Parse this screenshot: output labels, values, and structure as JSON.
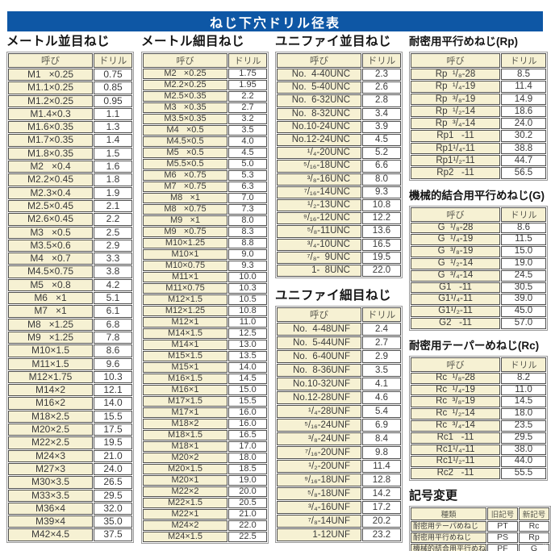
{
  "page_title": "ねじ下穴ドリル径表",
  "col_headers": {
    "name": "呼び",
    "drill": "ドリル"
  },
  "colors": {
    "banner_bg": "#0e57a5",
    "banner_text": "#ffffff",
    "cell_cream": "#f6f1d3",
    "cell_white": "#ffffff",
    "border_dark": "#4f4f4f",
    "border_outer": "#9a9a9a"
  },
  "sections": {
    "metric_coarse": {
      "title": "メートル並目ねじ",
      "rows": [
        [
          "M1   ×0.25",
          "0.75"
        ],
        [
          "M1.1×0.25",
          "0.85"
        ],
        [
          "M1.2×0.25",
          "0.95"
        ],
        [
          "M1.4×0.3",
          "1.1"
        ],
        [
          "M1.6×0.35",
          "1.3"
        ],
        [
          "M1.7×0.35",
          "1.4"
        ],
        [
          "M1.8×0.35",
          "1.5"
        ],
        [
          "M2   ×0.4",
          "1.6"
        ],
        [
          "M2.2×0.45",
          "1.8"
        ],
        [
          "M2.3×0.4",
          "1.9"
        ],
        [
          "M2.5×0.45",
          "2.1"
        ],
        [
          "M2.6×0.45",
          "2.2"
        ],
        [
          "M3   ×0.5",
          "2.5"
        ],
        [
          "M3.5×0.6",
          "2.9"
        ],
        [
          "M4   ×0.7",
          "3.3"
        ],
        [
          "M4.5×0.75",
          "3.8"
        ],
        [
          "M5   ×0.8",
          "4.2"
        ],
        [
          "M6   ×1",
          "5.1"
        ],
        [
          "M7   ×1",
          "6.1"
        ],
        [
          "M8   ×1.25",
          "6.8"
        ],
        [
          "M9   ×1.25",
          "7.8"
        ],
        [
          "M10×1.5",
          "8.6"
        ],
        [
          "M11×1.5",
          "9.6"
        ],
        [
          "M12×1.75",
          "10.3"
        ],
        [
          "M14×2",
          "12.1"
        ],
        [
          "M16×2",
          "14.0"
        ],
        [
          "M18×2.5",
          "15.5"
        ],
        [
          "M20×2.5",
          "17.5"
        ],
        [
          "M22×2.5",
          "19.5"
        ],
        [
          "M24×3",
          "21.0"
        ],
        [
          "M27×3",
          "24.0"
        ],
        [
          "M30×3.5",
          "26.5"
        ],
        [
          "M33×3.5",
          "29.5"
        ],
        [
          "M36×4",
          "32.0"
        ],
        [
          "M39×4",
          "35.0"
        ],
        [
          "M42×4.5",
          "37.5"
        ]
      ]
    },
    "metric_fine": {
      "title": "メートル細目ねじ",
      "rows": [
        [
          "M2   ×0.25",
          "1.75"
        ],
        [
          "M2.2×0.25",
          "1.95"
        ],
        [
          "M2.5×0.35",
          "2.2"
        ],
        [
          "M3   ×0.35",
          "2.7"
        ],
        [
          "M3.5×0.35",
          "3.2"
        ],
        [
          "M4   ×0.5",
          "3.5"
        ],
        [
          "M4.5×0.5",
          "4.0"
        ],
        [
          "M5   ×0.5",
          "4.5"
        ],
        [
          "M5.5×0.5",
          "5.0"
        ],
        [
          "M6   ×0.75",
          "5.3"
        ],
        [
          "M7   ×0.75",
          "6.3"
        ],
        [
          "M8   ×1",
          "7.0"
        ],
        [
          "M8   ×0.75",
          "7.3"
        ],
        [
          "M9   ×1",
          "8.0"
        ],
        [
          "M9   ×0.75",
          "8.3"
        ],
        [
          "M10×1.25",
          "8.8"
        ],
        [
          "M10×1",
          "9.0"
        ],
        [
          "M10×0.75",
          "9.3"
        ],
        [
          "M11×1",
          "10.0"
        ],
        [
          "M11×0.75",
          "10.3"
        ],
        [
          "M12×1.5",
          "10.5"
        ],
        [
          "M12×1.25",
          "10.8"
        ],
        [
          "M12×1",
          "11.0"
        ],
        [
          "M14×1.5",
          "12.5"
        ],
        [
          "M14×1",
          "13.0"
        ],
        [
          "M15×1.5",
          "13.5"
        ],
        [
          "M15×1",
          "14.0"
        ],
        [
          "M16×1.5",
          "14.5"
        ],
        [
          "M16×1",
          "15.0"
        ],
        [
          "M17×1.5",
          "15.5"
        ],
        [
          "M17×1",
          "16.0"
        ],
        [
          "M18×2",
          "16.0"
        ],
        [
          "M18×1.5",
          "16.5"
        ],
        [
          "M18×1",
          "17.0"
        ],
        [
          "M20×2",
          "18.0"
        ],
        [
          "M20×1.5",
          "18.5"
        ],
        [
          "M20×1",
          "19.0"
        ],
        [
          "M22×2",
          "20.0"
        ],
        [
          "M22×1.5",
          "20.5"
        ],
        [
          "M22×1",
          "21.0"
        ],
        [
          "M24×2",
          "22.0"
        ],
        [
          "M24×1.5",
          "22.5"
        ]
      ]
    },
    "unified_coarse": {
      "title": "ユニファイ並目ねじ",
      "rows": [
        [
          "No.  4-40UNC",
          "2.3"
        ],
        [
          "No.  5-40UNC",
          "2.6"
        ],
        [
          "No.  6-32UNC",
          "2.8"
        ],
        [
          "No.  8-32UNC",
          "3.4"
        ],
        [
          "No.10-24UNC",
          "3.9"
        ],
        [
          "No.12-24UNC",
          "4.5"
        ],
        [
          "¹/₄-20UNC",
          "5.2"
        ],
        [
          "⁵/₁₆-18UNC",
          "6.6"
        ],
        [
          "³/₈-16UNC",
          "8.0"
        ],
        [
          "⁷/₁₆-14UNC",
          "9.3"
        ],
        [
          "¹/₂-13UNC",
          "10.8"
        ],
        [
          "⁹/₁₆-12UNC",
          "12.2"
        ],
        [
          "⁵/₈-11UNC",
          "13.6"
        ],
        [
          "³/₄-10UNC",
          "16.5"
        ],
        [
          "⁷/₈-  9UNC",
          "19.5"
        ],
        [
          "1-  8UNC",
          "22.0"
        ]
      ]
    },
    "unified_fine": {
      "title": "ユニファイ細目ねじ",
      "rows": [
        [
          "No.  4-48UNF",
          "2.4"
        ],
        [
          "No.  5-44UNF",
          "2.7"
        ],
        [
          "No.  6-40UNF",
          "2.9"
        ],
        [
          "No.  8-36UNF",
          "3.5"
        ],
        [
          "No.10-32UNF",
          "4.1"
        ],
        [
          "No.12-28UNF",
          "4.6"
        ],
        [
          "¹/₄-28UNF",
          "5.4"
        ],
        [
          "⁵/₁₆-24UNF",
          "6.9"
        ],
        [
          "³/₈-24UNF",
          "8.4"
        ],
        [
          "⁷/₁₆-20UNF",
          "9.8"
        ],
        [
          "¹/₂-20UNF",
          "11.4"
        ],
        [
          "⁹/₁₆-18UNF",
          "12.8"
        ],
        [
          "⁵/₈-18UNF",
          "14.2"
        ],
        [
          "³/₄-16UNF",
          "17.2"
        ],
        [
          "⁷/₈-14UNF",
          "20.2"
        ],
        [
          "1-12UNF",
          "23.2"
        ]
      ]
    },
    "rp": {
      "title": "耐密用平行めねじ(Rp)",
      "rows": [
        [
          "Rp  ¹/₈-28",
          "8.5"
        ],
        [
          "Rp  ¹/₄-19",
          "11.4"
        ],
        [
          "Rp  ³/₈-19",
          "14.9"
        ],
        [
          "Rp  ¹/₂-14",
          "18.6"
        ],
        [
          "Rp  ³/₄-14",
          "24.0"
        ],
        [
          "Rp1   -11",
          "30.2"
        ],
        [
          "Rp1¹/₄-11",
          "38.8"
        ],
        [
          "Rp1¹/₂-11",
          "44.7"
        ],
        [
          "Rp2   -11",
          "56.5"
        ]
      ]
    },
    "g": {
      "title": "機械的結合用平行めねじ(G)",
      "rows": [
        [
          "G  ¹/₈-28",
          "8.6"
        ],
        [
          "G  ¹/₄-19",
          "11.5"
        ],
        [
          "G  ³/₈-19",
          "15.0"
        ],
        [
          "G  ¹/₂-14",
          "19.0"
        ],
        [
          "G  ³/₄-14",
          "24.5"
        ],
        [
          "G1   -11",
          "30.5"
        ],
        [
          "G1¹/₄-11",
          "39.0"
        ],
        [
          "G1¹/₂-11",
          "45.0"
        ],
        [
          "G2   -11",
          "57.0"
        ]
      ]
    },
    "rc": {
      "title": "耐密用テーパーめねじ(Rc)",
      "rows": [
        [
          "Rc  ¹/₈-28",
          "8.2"
        ],
        [
          "Rc  ¹/₄-19",
          "11.0"
        ],
        [
          "Rc  ³/₈-19",
          "14.5"
        ],
        [
          "Rc  ¹/₂-14",
          "18.0"
        ],
        [
          "Rc  ³/₄-14",
          "23.5"
        ],
        [
          "Rc1   -11",
          "29.5"
        ],
        [
          "Rc1¹/₄-11",
          "38.0"
        ],
        [
          "Rc1¹/₂-11",
          "44.0"
        ],
        [
          "Rc2   -11",
          "55.5"
        ]
      ]
    },
    "symbol_change": {
      "title": "記号変更",
      "headers": [
        "種類",
        "旧記号",
        "新記号"
      ],
      "rows": [
        [
          "耐密用テーパめねじ",
          "PT",
          "Rc"
        ],
        [
          "耐密用平行めねじ",
          "PS",
          "Rp"
        ],
        [
          "機械的結合用平行めねじ",
          "PF",
          "G"
        ]
      ]
    }
  },
  "corner_mark": "··"
}
